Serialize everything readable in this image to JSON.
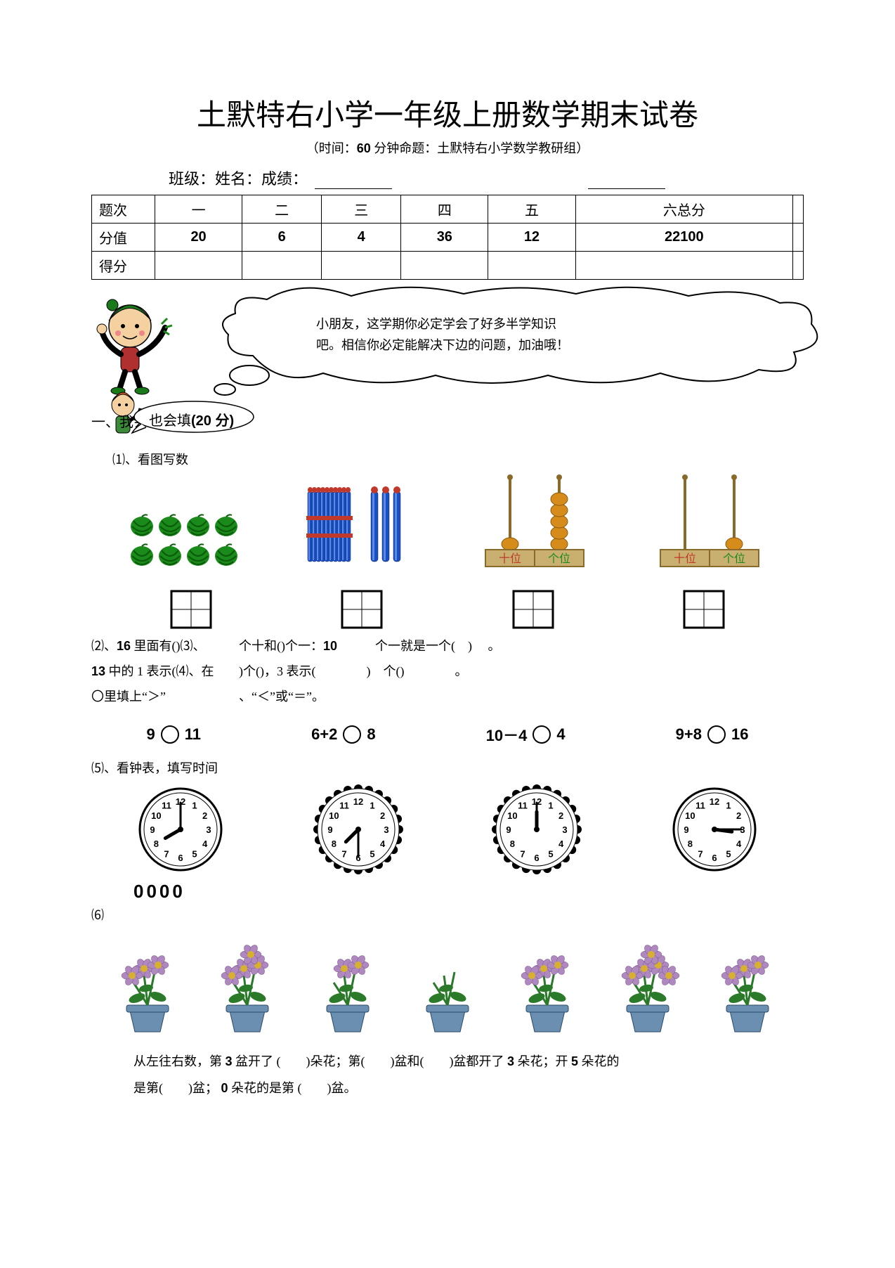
{
  "title": "土默特右小学一年级上册数学期末试卷",
  "subtitle_prefix": "（时间：",
  "subtitle_time": "60",
  "subtitle_suffix": " 分钟命题：土默特右小学数学教研组）",
  "class_label": "班级：",
  "name_label": "姓名：",
  "score_label": "成绩：",
  "score_table": {
    "rows": [
      "题次",
      "分值",
      "得分"
    ],
    "cols": [
      "一",
      "二",
      "三",
      "四",
      "五",
      "六总分",
      ""
    ],
    "values": [
      "20",
      "6",
      "4",
      "36",
      "12",
      "22100",
      ""
    ]
  },
  "bubble_line1": "小朋友，这学期你必定学会了好多半学知识",
  "bubble_line2": "吧。相信你必定能解决下边的问题，加油哦！",
  "s1_head_pre": "一、我会想",
  "s1_head_oval": "也会填",
  "s1_points": "(20 分)",
  "q1_label": "⑴、看图写数",
  "abacus_tens": "十位",
  "abacus_ones": "个位",
  "q2_left": "⑵、",
  "q2_left_b": "16",
  "q2_left_suf": " 里面有()⑶、",
  "q2_right": "个十和()个一：",
  "q2_right_b": "10",
  "q2_right_mid": "　　　个一就是一个(　) 　。",
  "q3_left_b": "13",
  "q3_left": " 中的 1 表示(⑷、在",
  "q3_right": ")个()，3 表示(　　　　)　个()　　　　。",
  "q4_left": "〇里填上“＞”",
  "q4_right": "、“＜”或“＝”。",
  "compare": [
    {
      "a": "9",
      "b": "11"
    },
    {
      "a": "6+2",
      "b": "8"
    },
    {
      "a": "10－4",
      "b": "4"
    },
    {
      "a": "9+8",
      "b": "16"
    }
  ],
  "q5_label": "⑸、看钟表，填写时间",
  "clocks": [
    {
      "h": 8,
      "m": 0
    },
    {
      "h": 7,
      "m": 30
    },
    {
      "h": 12,
      "m": 0
    },
    {
      "h": 3,
      "m": 15
    }
  ],
  "clock_ans": "0000",
  "q6_label": "⑹",
  "flower_counts": [
    3,
    4,
    2,
    0,
    3,
    5,
    3
  ],
  "q6_text_p1": "从左往右数，第",
  "q6_text_b1": "3",
  "q6_text_p2": " 盆开了 (　　)朵花；第(　　)盆和(　　)盆都开了 ",
  "q6_text_b2": "3",
  "q6_text_p3": " 朵花；开 ",
  "q6_text_b3": "5",
  "q6_text_p4": " 朵花的",
  "q6_text_p5": "是第(　　)盆；",
  "q6_text_b4": "0",
  "q6_text_p6": " 朵花的是第 (　　)盆。",
  "colors": {
    "watermelon_skin": "#1a8a1a",
    "watermelon_stripe": "#0a5a0a",
    "stick_blue": "#1b4fbf",
    "stick_highlight": "#5a8ae8",
    "stick_tip": "#c0392b",
    "abacus_bead": "#d68c1a",
    "abacus_frame": "#c9b070",
    "flower_pot": "#6b8fb0",
    "flower_petal": "#b088c0",
    "flower_center": "#d8b030",
    "leaf": "#2a7a2a",
    "mascot_skin": "#f5d0a0",
    "mascot_hat": "#1a7a1a",
    "mascot_red": "#b03030",
    "kid2_hair": "#d05a1a"
  }
}
